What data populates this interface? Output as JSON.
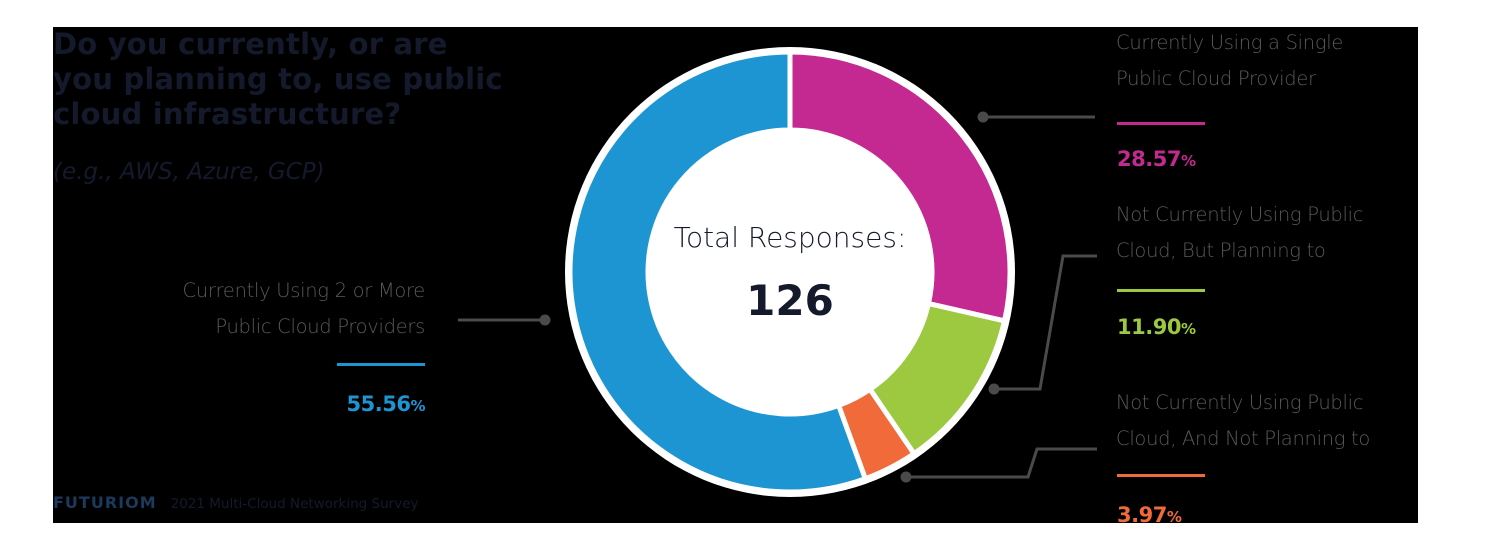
{
  "question": {
    "title": "Do you currently, or are you planning to, use public cloud infrastructure?",
    "title_lines": [
      "Do you currently, or are",
      "you planning to, use public",
      "cloud infrastructure?"
    ],
    "subtitle": "(e.g., AWS, Azure, GCP)"
  },
  "center": {
    "title": "Total Responses:",
    "value": "126"
  },
  "segments": [
    {
      "label_lines": [
        "Currently Using a Single",
        "Public Cloud Provider"
      ],
      "value": "28.57",
      "unit": "%",
      "color": "#C42891"
    },
    {
      "label_lines": [
        "Not Currently Using Public",
        "Cloud, But Planning to"
      ],
      "value": "11.90",
      "unit": "%",
      "color": "#9CC93F"
    },
    {
      "label_lines": [
        "Not Currently Using Public",
        "Cloud, And Not Planning to"
      ],
      "value": "3.97",
      "unit": "%",
      "color": "#F06A3A"
    },
    {
      "label_lines": [
        "Currently Using 2 or More",
        "Public Cloud Providers"
      ],
      "value": "55.56",
      "unit": "%",
      "color": "#1E95D3"
    }
  ],
  "footer": {
    "logo": "FUTURIOM",
    "text": "2021 Multi-Cloud Networking Survey"
  },
  "chart_data": {
    "type": "pie",
    "variant": "donut",
    "title": "Do you currently, or are you planning to, use public cloud infrastructure? (e.g., AWS, Azure, GCP)",
    "center_text": "Total Responses: 126",
    "total": 126,
    "categories": [
      "Currently Using a Single Public Cloud Provider",
      "Not Currently Using Public Cloud, But Planning to",
      "Not Currently Using Public Cloud, And Not Planning to",
      "Currently Using 2 or More Public Cloud Providers"
    ],
    "values": [
      28.57,
      11.9,
      3.97,
      55.56
    ],
    "colors": [
      "#C42891",
      "#9CC93F",
      "#F06A3A",
      "#1E95D3"
    ],
    "unit": "%",
    "start_angle": "12 o'clock",
    "direction": "clockwise",
    "legend": "callout labels with leader lines",
    "source": "FUTURIOM 2021 Multi-Cloud Networking Survey"
  }
}
